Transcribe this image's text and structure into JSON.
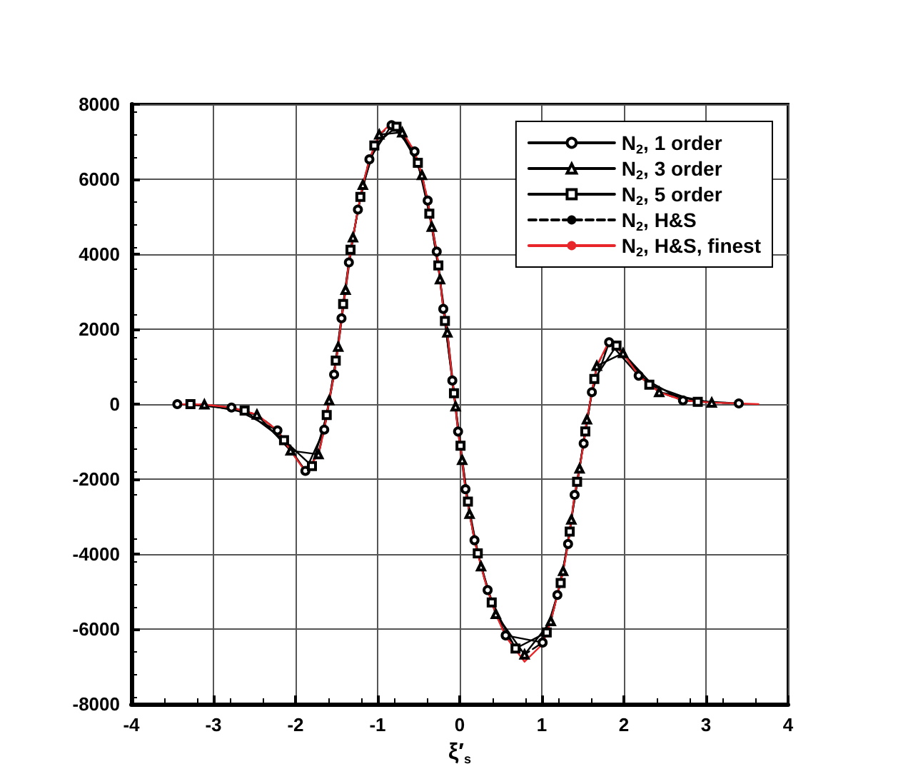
{
  "chart_data": {
    "type": "line",
    "xlabel": "ξ′$_{s}$",
    "xlim": [
      -4,
      4
    ],
    "xticks": [
      -4,
      -3,
      -2,
      -1,
      0,
      1,
      2,
      3,
      4
    ],
    "ylim": [
      -8000,
      8000
    ],
    "yticks": [
      -8000,
      -6000,
      -4000,
      -2000,
      0,
      2000,
      4000,
      6000,
      8000
    ],
    "grid": true,
    "legend": "top right",
    "series": [
      {
        "name": "N$_{2}$, 1 order",
        "color": "#000000",
        "marker": "circle",
        "line_style": "solid",
        "x": [
          -3.44,
          -2.78,
          -2.22,
          -1.88,
          -1.65,
          -1.53,
          -1.44,
          -1.35,
          -1.24,
          -1.1,
          -0.83,
          -0.55,
          -0.39,
          -0.28,
          -0.2,
          -0.09,
          -0.02,
          0.07,
          0.18,
          0.34,
          0.56,
          1.01,
          1.19,
          1.32,
          1.4,
          1.51,
          1.61,
          1.82,
          2.18,
          2.72,
          3.4
        ],
        "values": [
          0,
          -90,
          -700,
          -1780,
          -680,
          790,
          2290,
          3780,
          5190,
          6530,
          7440,
          6740,
          5430,
          4070,
          2540,
          630,
          -730,
          -2270,
          -3630,
          -4960,
          -6170,
          -6360,
          -5090,
          -3730,
          -2420,
          -1050,
          320,
          1650,
          760,
          100,
          20
        ]
      },
      {
        "name": "N$_{2}$, 3 order",
        "color": "#000000",
        "marker": "triangle",
        "line_style": "solid",
        "x": [
          -3.11,
          -2.47,
          -2.06,
          -1.72,
          -1.59,
          -1.48,
          -1.39,
          -1.3,
          -1.18,
          -0.98,
          -0.7,
          -0.46,
          -0.34,
          -0.24,
          -0.15,
          -0.05,
          0.03,
          0.12,
          0.26,
          0.44,
          0.79,
          1.11,
          1.26,
          1.36,
          1.46,
          1.55,
          1.67,
          1.99,
          2.43,
          3.07
        ],
        "values": [
          -10,
          -280,
          -1240,
          -1340,
          100,
          1530,
          3050,
          4450,
          5850,
          7190,
          7250,
          6110,
          4730,
          3330,
          1910,
          -60,
          -1490,
          -2930,
          -4330,
          -5600,
          -6680,
          -5790,
          -4450,
          -3080,
          -1720,
          -410,
          1020,
          1360,
          320,
          40
        ]
      },
      {
        "name": "N$_{2}$, 5 order",
        "color": "#000000",
        "marker": "square",
        "line_style": "solid",
        "x": [
          -3.28,
          -2.62,
          -2.14,
          -1.8,
          -1.62,
          -1.51,
          -1.42,
          -1.33,
          -1.21,
          -1.04,
          -0.77,
          -0.51,
          -0.37,
          -0.26,
          -0.18,
          -0.07,
          0.01,
          0.1,
          0.22,
          0.39,
          0.68,
          1.06,
          1.23,
          1.34,
          1.43,
          1.53,
          1.64,
          1.91,
          2.31,
          2.9
        ],
        "values": [
          0,
          -170,
          -960,
          -1650,
          -290,
          1160,
          2670,
          4120,
          5530,
          6900,
          7400,
          6440,
          5080,
          3700,
          2220,
          290,
          -1110,
          -2600,
          -3980,
          -5290,
          -6520,
          -6090,
          -4770,
          -3400,
          -2070,
          -730,
          670,
          1560,
          520,
          60
        ]
      },
      {
        "name": "N$_{2}$, H&S",
        "color": "#000000",
        "marker": "none",
        "line_style": "dashed",
        "x": [
          -3.44,
          -3.11,
          -2.78,
          -2.47,
          -2.22,
          -2.06,
          -1.88,
          -1.72,
          -1.65,
          -1.59,
          -1.53,
          -1.48,
          -1.44,
          -1.39,
          -1.35,
          -1.3,
          -1.24,
          -1.18,
          -1.1,
          -0.98,
          -0.83,
          -0.7,
          -0.55,
          -0.46,
          -0.39,
          -0.34,
          -0.28,
          -0.24,
          -0.2,
          -0.15,
          -0.09,
          -0.05,
          -0.02,
          0.03,
          0.07,
          0.12,
          0.18,
          0.26,
          0.34,
          0.44,
          0.56,
          0.79,
          1.01,
          1.11,
          1.19,
          1.26,
          1.32,
          1.36,
          1.4,
          1.46,
          1.51,
          1.55,
          1.61,
          1.67,
          1.82,
          1.99,
          2.18,
          2.43,
          2.72,
          3.07,
          3.4
        ],
        "values": [
          0,
          -10,
          -90,
          -280,
          -700,
          -1240,
          -1780,
          -1340,
          -680,
          100,
          790,
          1530,
          2290,
          3050,
          3780,
          4450,
          5190,
          5850,
          6530,
          7190,
          7440,
          7250,
          6740,
          6110,
          5430,
          4730,
          4070,
          3330,
          2540,
          1910,
          630,
          -60,
          -730,
          -1490,
          -2270,
          -2930,
          -3630,
          -4330,
          -4960,
          -5600,
          -6170,
          -6680,
          -6360,
          -5790,
          -5090,
          -4450,
          -3730,
          -3080,
          -2420,
          -1720,
          -1050,
          -410,
          320,
          1020,
          1650,
          1360,
          760,
          320,
          100,
          40,
          20
        ]
      },
      {
        "name": "N$_{2}$, H&S, finest",
        "color": "#e8262a",
        "marker": "none",
        "line_style": "solid",
        "x": [
          -3.44,
          -3.11,
          -2.78,
          -2.47,
          -2.22,
          -2.06,
          -1.88,
          -1.72,
          -1.65,
          -1.59,
          -1.53,
          -1.48,
          -1.44,
          -1.39,
          -1.35,
          -1.3,
          -1.24,
          -1.18,
          -1.1,
          -0.98,
          -0.83,
          -0.7,
          -0.55,
          -0.46,
          -0.39,
          -0.34,
          -0.28,
          -0.24,
          -0.2,
          -0.15,
          -0.09,
          -0.05,
          -0.02,
          0.03,
          0.07,
          0.12,
          0.18,
          0.26,
          0.34,
          0.44,
          0.56,
          0.79,
          1.01,
          1.11,
          1.19,
          1.26,
          1.32,
          1.36,
          1.4,
          1.46,
          1.51,
          1.55,
          1.61,
          1.67,
          1.82,
          1.99,
          2.18,
          2.43,
          2.72,
          3.07,
          3.4,
          3.64
        ],
        "values": [
          0,
          -10,
          -90,
          -280,
          -700,
          -1240,
          -1800,
          -1340,
          -680,
          100,
          790,
          1530,
          2290,
          3050,
          3780,
          4450,
          5190,
          5850,
          6530,
          7190,
          7500,
          7280,
          6740,
          6110,
          5430,
          4730,
          4070,
          3330,
          2540,
          1910,
          630,
          -60,
          -730,
          -1490,
          -2270,
          -2930,
          -3630,
          -4330,
          -4960,
          -5600,
          -6200,
          -6870,
          -6400,
          -5790,
          -5090,
          -4450,
          -3730,
          -3080,
          -2420,
          -1720,
          -1050,
          -410,
          320,
          1020,
          1680,
          1360,
          760,
          320,
          100,
          40,
          20,
          0
        ]
      }
    ]
  }
}
